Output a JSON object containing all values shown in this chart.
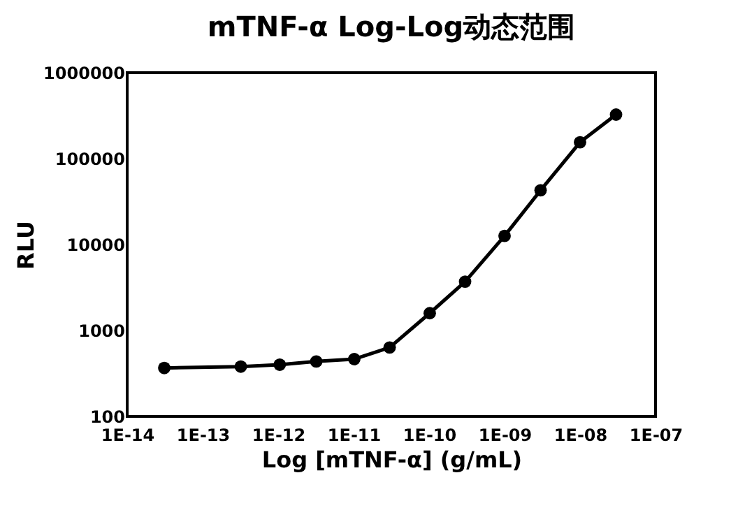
{
  "chart_data": {
    "type": "line",
    "title": "mTNF-α Log-Log动态范围",
    "xlabel": "Log [mTNF-α] (g/mL)",
    "ylabel": "RLU",
    "log": "xy",
    "grid": false,
    "marker": "circle",
    "line_style": "solid",
    "xlim": [
      1e-14,
      1e-07
    ],
    "xticks": [
      {
        "value": 1e-14,
        "label": "1E-14"
      },
      {
        "value": 1e-13,
        "label": "1E-13"
      },
      {
        "value": 1e-12,
        "label": "1E-12"
      },
      {
        "value": 1e-11,
        "label": "1E-11"
      },
      {
        "value": 1e-10,
        "label": "1E-10"
      },
      {
        "value": 1e-09,
        "label": "1E-09"
      },
      {
        "value": 1e-08,
        "label": "1E-08"
      },
      {
        "value": 1e-07,
        "label": "1E-07"
      }
    ],
    "ylim": [
      100,
      1000000
    ],
    "yticks": [
      100,
      1000,
      10000,
      100000,
      1000000
    ],
    "x": [
      3.1e-14,
      3.2e-13,
      1.05e-12,
      3.2e-12,
      1.02e-11,
      3e-11,
      1.02e-10,
      3e-10,
      1e-09,
      3e-09,
      1e-08,
      3e-08
    ],
    "series": [
      {
        "color": "#000000",
        "values": [
          366,
          380,
          400,
          436,
          464,
          634,
          1590,
          3700,
          12600,
          42800,
          155000,
          325000
        ]
      }
    ]
  }
}
